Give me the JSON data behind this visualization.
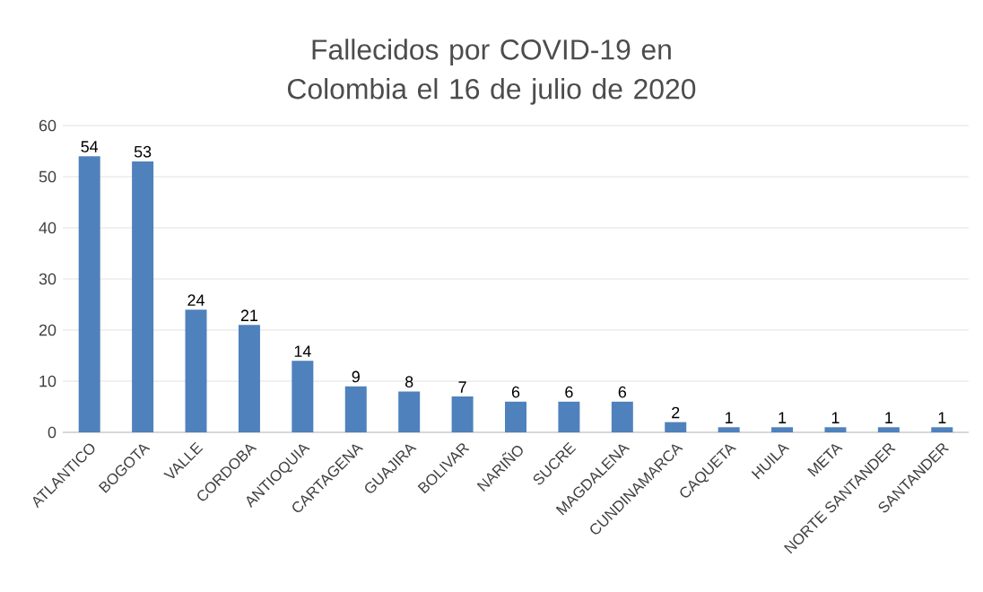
{
  "chart_data": {
    "type": "bar",
    "title": "Fallecidos por COVID-19 en Colombia el 16 de julio de 2020",
    "categories": [
      "ATLANTICO",
      "BOGOTA",
      "VALLE",
      "CORDOBA",
      "ANTIOQUIA",
      "CARTAGENA",
      "GUAJIRA",
      "BOLIVAR",
      "NARIÑO",
      "SUCRE",
      "MAGDALENA",
      "CUNDINAMARCA",
      "CAQUETA",
      "HUILA",
      "META",
      "NORTE SANTANDER",
      "SANTANDER"
    ],
    "values": [
      54,
      53,
      24,
      21,
      14,
      9,
      8,
      7,
      6,
      6,
      6,
      2,
      1,
      1,
      1,
      1,
      1
    ],
    "color": "#4f81bd",
    "ylim": [
      0,
      60
    ],
    "yticks": [
      0,
      10,
      20,
      30,
      40,
      50,
      60
    ],
    "grid": "y",
    "data_labels": true
  }
}
